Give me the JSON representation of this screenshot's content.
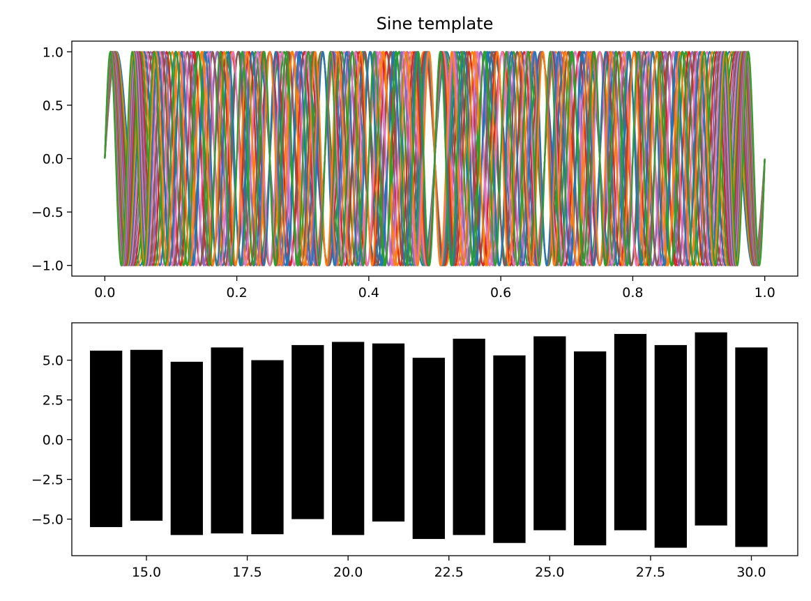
{
  "chart_data": [
    {
      "type": "line",
      "title": "Sine template",
      "xlabel": "",
      "ylabel": "",
      "xlim": [
        -0.05,
        1.05
      ],
      "ylim": [
        -1.1,
        1.1
      ],
      "grid": false,
      "legend": "none",
      "x_ticks": [
        0.0,
        0.2,
        0.4,
        0.6,
        0.8,
        1.0
      ],
      "x_tick_labels": [
        "0.0",
        "0.2",
        "0.4",
        "0.6",
        "0.8",
        "1.0"
      ],
      "y_ticks": [
        -1.0,
        -0.5,
        0.0,
        0.5,
        1.0
      ],
      "y_tick_labels": [
        "−1.0",
        "−0.5",
        "0.0",
        "0.5",
        "1.0"
      ],
      "series_function": "sin(2*pi*f*x)",
      "x_range": [
        0,
        1
      ],
      "frequencies": [
        14,
        15,
        16,
        17,
        18,
        19,
        20,
        21,
        22,
        23,
        24,
        25,
        26,
        27,
        28,
        29,
        30
      ],
      "colors": [
        "#1f77b4",
        "#ff7f0e",
        "#2ca02c",
        "#d62728",
        "#9467bd",
        "#8c564b",
        "#e377c2"
      ]
    },
    {
      "type": "bar",
      "title": "",
      "xlabel": "",
      "ylabel": "",
      "xlim": [
        13.15,
        31.15
      ],
      "ylim": [
        -7.3,
        7.35
      ],
      "grid": false,
      "legend": "none",
      "x_ticks": [
        15.0,
        17.5,
        20.0,
        22.5,
        25.0,
        27.5,
        30.0
      ],
      "x_tick_labels": [
        "15.0",
        "17.5",
        "20.0",
        "22.5",
        "25.0",
        "27.5",
        "30.0"
      ],
      "y_ticks": [
        -5.0,
        -2.5,
        0.0,
        2.5,
        5.0
      ],
      "y_tick_labels": [
        "−5.0",
        "−2.5",
        "0.0",
        "2.5",
        "5.0"
      ],
      "bar_color": "#000000",
      "bar_width": 0.8,
      "bars": [
        {
          "x": 14,
          "bottom": -5.5,
          "top": 5.6
        },
        {
          "x": 15,
          "bottom": -5.1,
          "top": 5.65
        },
        {
          "x": 16,
          "bottom": -6.0,
          "top": 4.9
        },
        {
          "x": 17,
          "bottom": -5.9,
          "top": 5.8
        },
        {
          "x": 18,
          "bottom": -5.95,
          "top": 5.0
        },
        {
          "x": 19,
          "bottom": -5.0,
          "top": 5.95
        },
        {
          "x": 20,
          "bottom": -6.0,
          "top": 6.15
        },
        {
          "x": 21,
          "bottom": -5.15,
          "top": 6.05
        },
        {
          "x": 22,
          "bottom": -6.25,
          "top": 5.15
        },
        {
          "x": 23,
          "bottom": -6.0,
          "top": 6.35
        },
        {
          "x": 24,
          "bottom": -6.5,
          "top": 5.3
        },
        {
          "x": 25,
          "bottom": -5.7,
          "top": 6.5
        },
        {
          "x": 26,
          "bottom": -6.65,
          "top": 5.55
        },
        {
          "x": 27,
          "bottom": -5.7,
          "top": 6.65
        },
        {
          "x": 28,
          "bottom": -6.8,
          "top": 5.95
        },
        {
          "x": 29,
          "bottom": -5.4,
          "top": 6.75
        },
        {
          "x": 30,
          "bottom": -6.75,
          "top": 5.8
        }
      ]
    }
  ]
}
